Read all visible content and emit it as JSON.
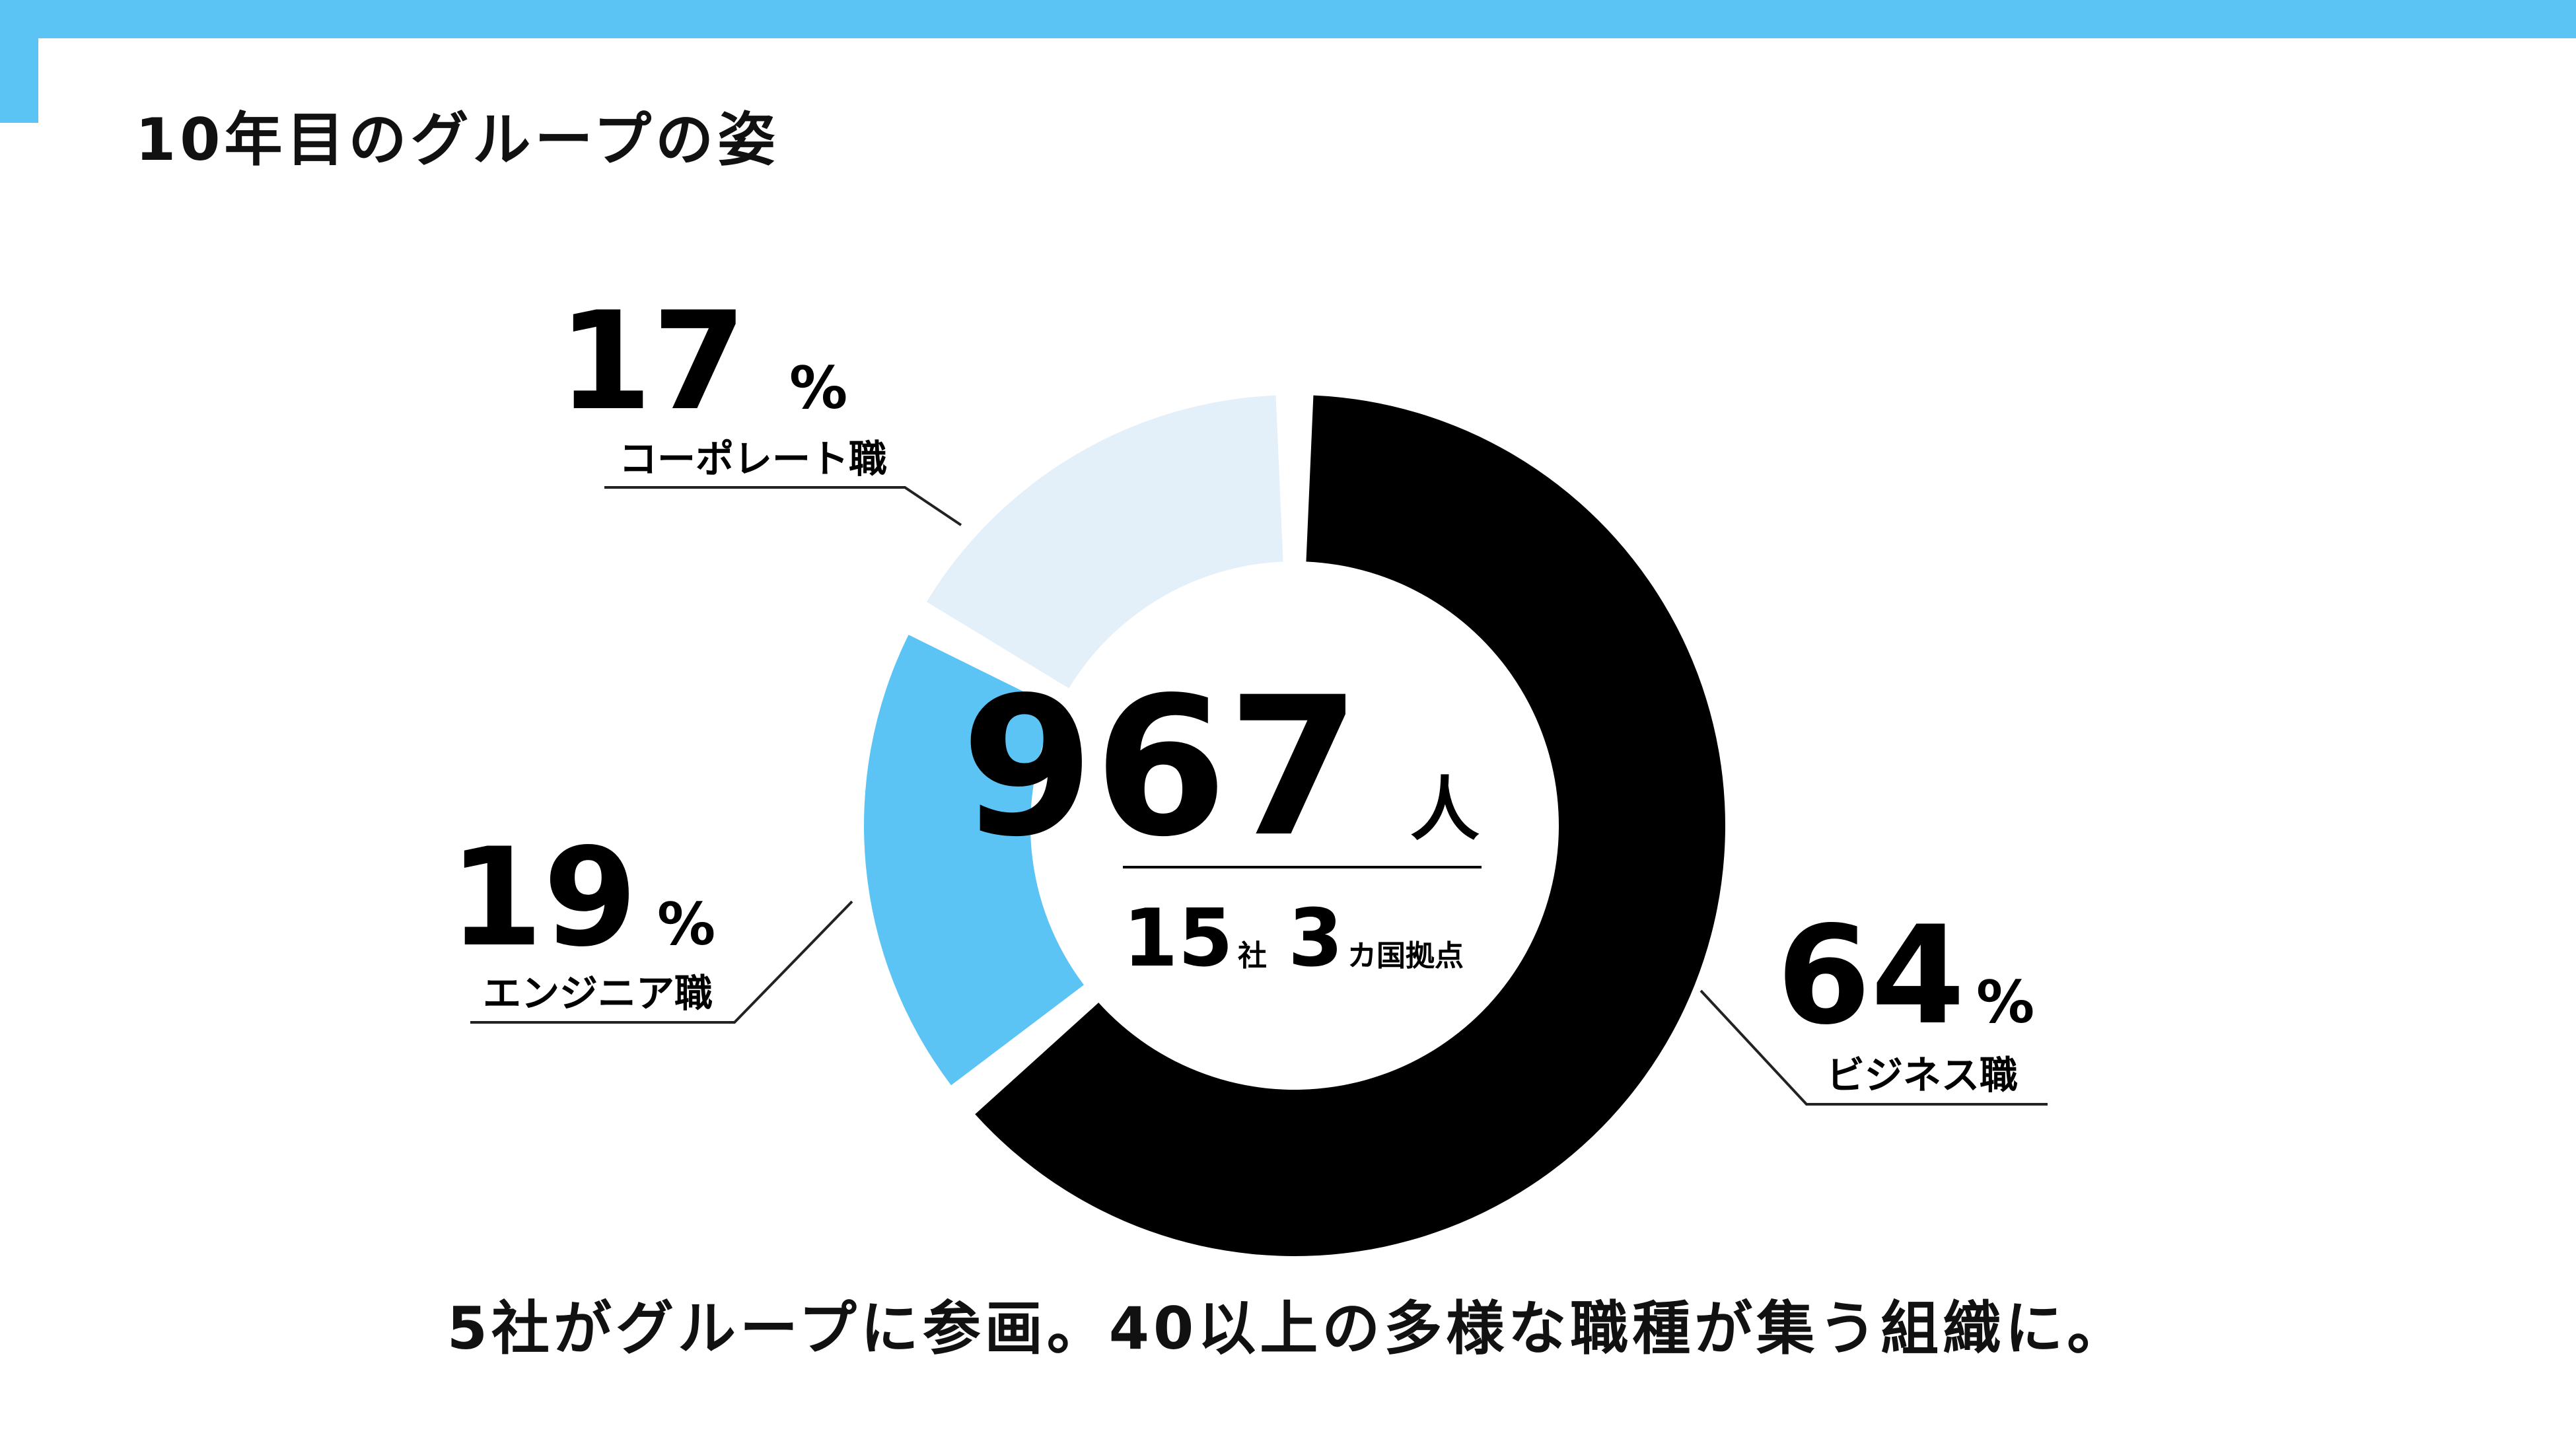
{
  "title": "10年目のグループの姿",
  "chart_data": {
    "type": "pie",
    "style": "donut",
    "slices": [
      {
        "label": "ビジネス職",
        "value": 64,
        "display": "64",
        "color": "#000000"
      },
      {
        "label": "エンジニア職",
        "value": 19,
        "display": "19",
        "color": "#5BC4F5"
      },
      {
        "label": "コーポレート職",
        "value": 17,
        "display": "17",
        "color": "#E3F0FA"
      }
    ],
    "percent_sign": "%",
    "center": {
      "total": "967",
      "total_unit": "人",
      "companies": "15",
      "companies_unit": "社",
      "countries": "3",
      "countries_unit": "カ国拠点"
    }
  },
  "footer": "5社がグループに参画。40以上の多様な職種が集う組織に。"
}
